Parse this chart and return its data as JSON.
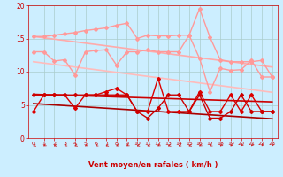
{
  "x": [
    0,
    1,
    2,
    3,
    4,
    5,
    6,
    7,
    8,
    9,
    10,
    11,
    12,
    13,
    14,
    15,
    16,
    17,
    18,
    19,
    20,
    21,
    22,
    23
  ],
  "background_color": "#cceeff",
  "grid_color": "#aacccc",
  "xlabel": "Vent moyen/en rafales ( km/h )",
  "xlabel_color": "#cc0000",
  "tick_color": "#cc0000",
  "ylim": [
    0,
    20
  ],
  "yticks": [
    0,
    5,
    10,
    15,
    20
  ],
  "series": [
    {
      "name": "upper_line1",
      "color": "#ff9999",
      "linewidth": 1.0,
      "marker": "D",
      "markersize": 2,
      "y": [
        15.3,
        15.3,
        15.5,
        15.7,
        15.9,
        16.2,
        16.4,
        16.6,
        17.0,
        17.3,
        15.0,
        15.5,
        15.4,
        15.4,
        15.5,
        15.5,
        19.5,
        15.2,
        11.8,
        11.5,
        11.5,
        11.5,
        11.7,
        9.2
      ]
    },
    {
      "name": "upper_line2",
      "color": "#ff9999",
      "linewidth": 1.0,
      "marker": "D",
      "markersize": 2,
      "y": [
        13.0,
        13.0,
        11.6,
        11.8,
        9.5,
        13.0,
        13.2,
        13.3,
        11.0,
        13.0,
        13.0,
        13.3,
        13.0,
        13.0,
        13.0,
        15.5,
        12.0,
        7.0,
        10.5,
        10.2,
        10.3,
        11.7,
        9.2,
        9.2
      ]
    },
    {
      "name": "trend_upper1",
      "color": "#ffaaaa",
      "linewidth": 1.2,
      "marker": null,
      "y": [
        15.3,
        15.1,
        14.9,
        14.7,
        14.5,
        14.3,
        14.1,
        13.9,
        13.7,
        13.5,
        13.3,
        13.1,
        12.9,
        12.7,
        12.5,
        12.3,
        12.1,
        11.9,
        11.7,
        11.5,
        11.3,
        11.1,
        10.9,
        10.7
      ]
    },
    {
      "name": "trend_upper2",
      "color": "#ffbbbb",
      "linewidth": 1.2,
      "marker": null,
      "y": [
        11.5,
        11.3,
        11.1,
        10.9,
        10.7,
        10.5,
        10.3,
        10.1,
        9.9,
        9.7,
        9.5,
        9.3,
        9.1,
        8.9,
        8.7,
        8.5,
        8.3,
        8.1,
        7.9,
        7.7,
        7.5,
        7.3,
        7.1,
        6.9
      ]
    },
    {
      "name": "lower_red1",
      "color": "#dd0000",
      "linewidth": 1.0,
      "marker": "D",
      "markersize": 2,
      "y": [
        4.0,
        6.5,
        6.5,
        6.5,
        4.5,
        6.5,
        6.5,
        7.0,
        7.5,
        6.5,
        4.0,
        4.0,
        9.0,
        4.0,
        4.0,
        4.0,
        7.0,
        4.0,
        4.0,
        6.5,
        4.0,
        6.5,
        4.0,
        4.0
      ]
    },
    {
      "name": "lower_red2",
      "color": "#cc0000",
      "linewidth": 1.0,
      "marker": "D",
      "markersize": 2,
      "y": [
        6.5,
        6.5,
        6.5,
        6.5,
        6.5,
        6.5,
        6.5,
        6.5,
        6.5,
        6.5,
        4.0,
        3.0,
        4.5,
        6.5,
        6.5,
        4.0,
        6.5,
        3.0,
        3.0,
        4.0,
        6.5,
        4.0,
        4.0,
        4.0
      ]
    },
    {
      "name": "trend_lower1",
      "color": "#cc0000",
      "linewidth": 1.2,
      "marker": null,
      "y": [
        6.6,
        6.55,
        6.5,
        6.45,
        6.4,
        6.35,
        6.3,
        6.25,
        6.2,
        6.15,
        6.1,
        6.05,
        6.0,
        5.95,
        5.9,
        5.85,
        5.8,
        5.75,
        5.7,
        5.65,
        5.6,
        5.55,
        5.5,
        5.45
      ]
    },
    {
      "name": "trend_lower2",
      "color": "#aa0000",
      "linewidth": 1.2,
      "marker": null,
      "y": [
        5.2,
        5.1,
        5.0,
        4.9,
        4.8,
        4.7,
        4.6,
        4.5,
        4.4,
        4.3,
        4.2,
        4.1,
        4.0,
        3.9,
        3.8,
        3.7,
        3.6,
        3.5,
        3.4,
        3.3,
        3.2,
        3.1,
        3.0,
        2.9
      ]
    }
  ],
  "arrow_color": "#cc2222",
  "arrow_angles": [
    200,
    210,
    200,
    205,
    200,
    210,
    205,
    200,
    205,
    210,
    200,
    205,
    210,
    200,
    205,
    200,
    210,
    205,
    215,
    220,
    225,
    230,
    235,
    240
  ]
}
